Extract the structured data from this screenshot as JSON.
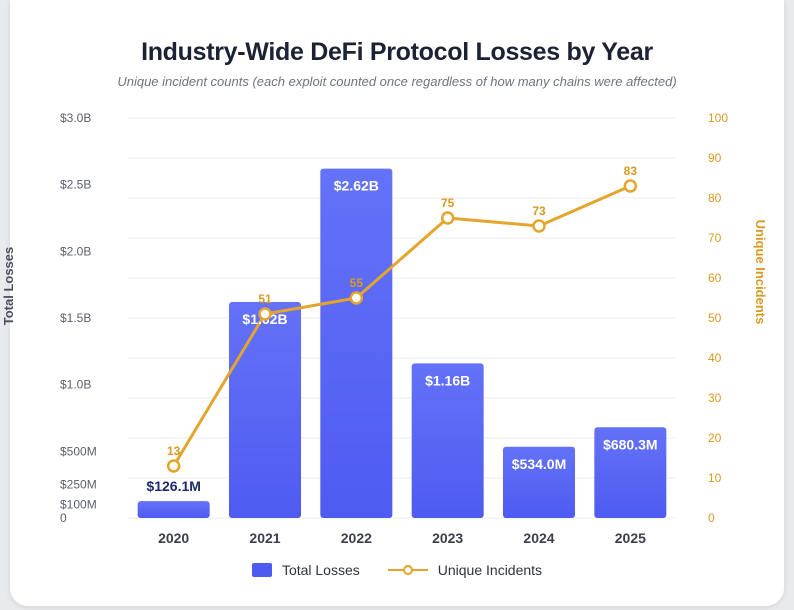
{
  "colors": {
    "bar": "#4e5bf1",
    "bar_light": "#6472f8",
    "line": "#e3a52c",
    "line_label": "#d99a22",
    "grid": "#eceef2",
    "axis_text": "#5b606c",
    "outside_label": "#1c2a6b"
  },
  "chart_data": {
    "type": "bar",
    "title": "Industry-Wide DeFi Protocol Losses by Year",
    "subtitle": "Unique incident counts (each exploit counted once regardless of how many chains were affected)",
    "categories": [
      "2020",
      "2021",
      "2022",
      "2023",
      "2024",
      "2025"
    ],
    "series": [
      {
        "name": "Total Losses",
        "type": "bar",
        "axis": "left",
        "values": [
          126.1,
          1620,
          2620,
          1160,
          534.0,
          680.3
        ],
        "unit": "USD millions",
        "labels": [
          "$126.1M",
          "$1.62B",
          "$2.62B",
          "$1.16B",
          "$534.0M",
          "$680.3M"
        ]
      },
      {
        "name": "Unique Incidents",
        "type": "line",
        "axis": "right",
        "values": [
          13,
          51,
          55,
          75,
          73,
          83
        ],
        "labels": [
          "13",
          "51",
          "55",
          "75",
          "73",
          "83"
        ]
      }
    ],
    "y_left": {
      "label": "Total Losses",
      "ticks": [
        {
          "value": 0,
          "label": "0"
        },
        {
          "value": 100,
          "label": "$100M"
        },
        {
          "value": 250,
          "label": "$250M"
        },
        {
          "value": 500,
          "label": "$500M"
        },
        {
          "value": 1000,
          "label": "$1.0B"
        },
        {
          "value": 1500,
          "label": "$1.5B"
        },
        {
          "value": 2000,
          "label": "$2.0B"
        },
        {
          "value": 2500,
          "label": "$2.5B"
        },
        {
          "value": 3000,
          "label": "$3.0B"
        }
      ],
      "range": [
        0,
        3000
      ]
    },
    "y_right": {
      "label": "Unique Incidents",
      "ticks": [
        0,
        10,
        20,
        30,
        40,
        50,
        60,
        70,
        80,
        90,
        100
      ],
      "range": [
        0,
        100
      ]
    },
    "grid": true,
    "legend_position": "bottom"
  }
}
